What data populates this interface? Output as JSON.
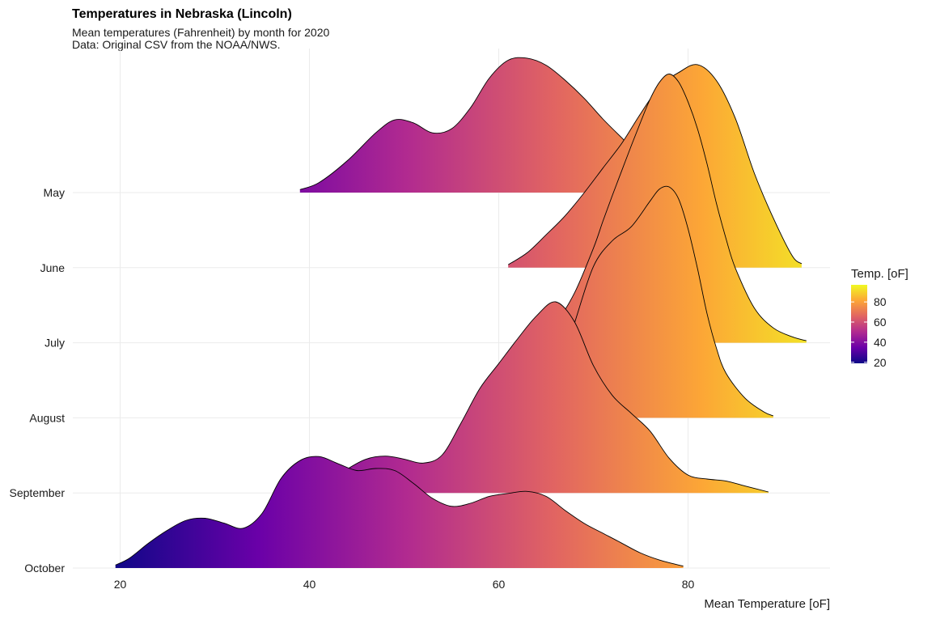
{
  "chart_data": {
    "type": "ridgeline",
    "title": "Temperatures in Nebraska (Lincoln)",
    "subtitle_lines": [
      "Mean temperatures (Fahrenheit) by month for 2020",
      "Data: Original CSV from the NOAA/NWS."
    ],
    "xlabel": "Mean Temperature [oF]",
    "xlim": [
      15,
      95
    ],
    "x_ticks": [
      20,
      40,
      60,
      80
    ],
    "grid": true,
    "categories": [
      "May",
      "June",
      "July",
      "August",
      "September",
      "October"
    ],
    "legend": {
      "title": "Temp. [oF]",
      "position": "right",
      "ticks": [
        20,
        40,
        60,
        80
      ],
      "range": [
        19,
        97
      ]
    },
    "color_scale": [
      "#0d0887",
      "#6a00a8",
      "#b12a90",
      "#e16462",
      "#fca636",
      "#f0f921"
    ],
    "series": [
      {
        "name": "May",
        "x": [
          39,
          41,
          44,
          47,
          49,
          51,
          53,
          55,
          57,
          59,
          61,
          63,
          65,
          67,
          69,
          71,
          73,
          75,
          77,
          79,
          80,
          81
        ],
        "density": [
          0.03,
          0.1,
          0.32,
          0.6,
          0.73,
          0.7,
          0.6,
          0.64,
          0.85,
          1.15,
          1.33,
          1.35,
          1.28,
          1.13,
          0.95,
          0.74,
          0.55,
          0.36,
          0.22,
          0.1,
          0.05,
          0.02
        ]
      },
      {
        "name": "June",
        "x": [
          61,
          63,
          65,
          67,
          69,
          71,
          73,
          75,
          77,
          79,
          81,
          83,
          85,
          87,
          89,
          91,
          92
        ],
        "density": [
          0.03,
          0.15,
          0.33,
          0.52,
          0.75,
          1.0,
          1.25,
          1.55,
          1.82,
          1.96,
          2.04,
          1.88,
          1.5,
          0.95,
          0.5,
          0.12,
          0.04
        ]
      },
      {
        "name": "July",
        "x": [
          64,
          66,
          68,
          70,
          71,
          72,
          73,
          74,
          75,
          76,
          77,
          78,
          79,
          80,
          81,
          82,
          83,
          84,
          85,
          87,
          89,
          91,
          92.5
        ],
        "density": [
          0.05,
          0.2,
          0.5,
          0.95,
          1.22,
          1.48,
          1.73,
          1.98,
          2.22,
          2.45,
          2.62,
          2.7,
          2.62,
          2.42,
          2.15,
          1.8,
          1.4,
          1.05,
          0.75,
          0.35,
          0.15,
          0.06,
          0.02
        ]
      },
      {
        "name": "August",
        "x": [
          66,
          68,
          70,
          72,
          74,
          76,
          77,
          78,
          79,
          80,
          81,
          82,
          83,
          84,
          86,
          88,
          89
        ],
        "density": [
          0.35,
          0.95,
          1.52,
          1.78,
          1.92,
          2.18,
          2.3,
          2.32,
          2.2,
          1.9,
          1.5,
          1.05,
          0.7,
          0.45,
          0.2,
          0.06,
          0.02
        ]
      },
      {
        "name": "September",
        "x": [
          40,
          42,
          44,
          46,
          48,
          50,
          52,
          54,
          56,
          58,
          60,
          62,
          64,
          66,
          68,
          70,
          72,
          74,
          76,
          78,
          80,
          82,
          84,
          86,
          88.5
        ],
        "density": [
          0.02,
          0.1,
          0.24,
          0.34,
          0.37,
          0.34,
          0.3,
          0.38,
          0.7,
          1.05,
          1.3,
          1.55,
          1.78,
          1.92,
          1.72,
          1.28,
          0.98,
          0.8,
          0.62,
          0.35,
          0.18,
          0.14,
          0.12,
          0.07,
          0.01
        ]
      },
      {
        "name": "October",
        "x": [
          19.5,
          21,
          23,
          25,
          27,
          29,
          31,
          33,
          35,
          37,
          39,
          41,
          43,
          45,
          47,
          49,
          51,
          53,
          55,
          57,
          59,
          61,
          63,
          65,
          67,
          69,
          71,
          73,
          75,
          77,
          79,
          79.5
        ],
        "density": [
          0.03,
          0.1,
          0.25,
          0.38,
          0.48,
          0.5,
          0.45,
          0.4,
          0.55,
          0.9,
          1.08,
          1.12,
          1.05,
          0.98,
          1.0,
          0.98,
          0.85,
          0.7,
          0.62,
          0.65,
          0.72,
          0.75,
          0.77,
          0.72,
          0.58,
          0.45,
          0.35,
          0.25,
          0.15,
          0.08,
          0.03,
          0.02
        ]
      }
    ]
  }
}
